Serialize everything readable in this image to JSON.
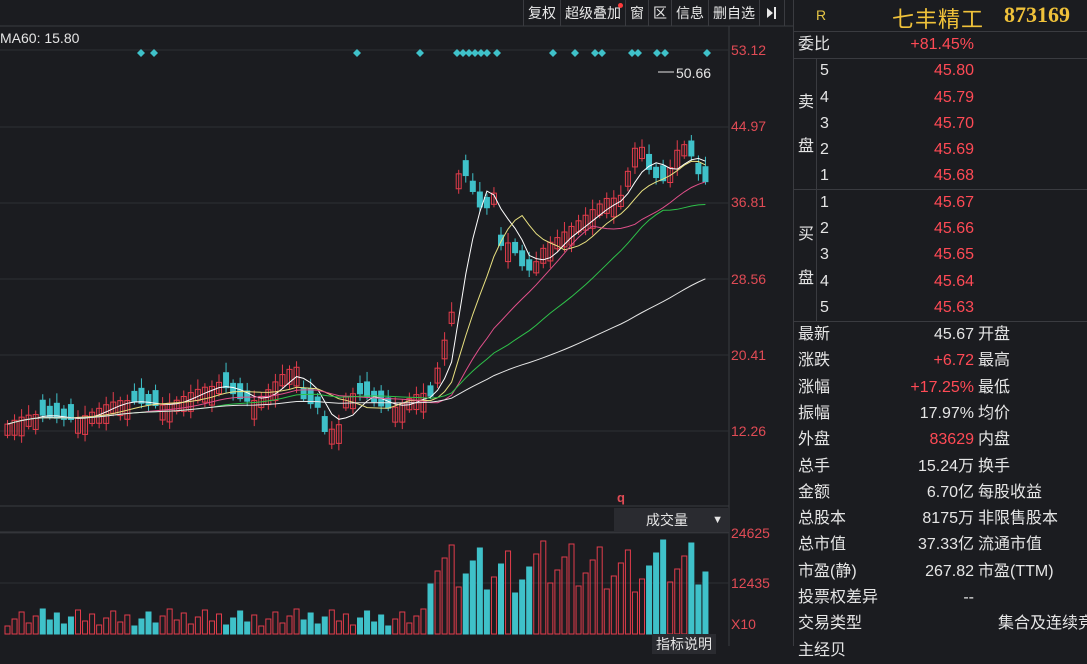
{
  "toolbar": {
    "items": [
      "复权",
      "超级叠加",
      "窗",
      "区",
      "信息",
      "删自选"
    ],
    "collapse_icon": "collapse-right-icon"
  },
  "chart": {
    "ma_label": "MA60: 15.80",
    "price_ticks": [
      "53.12",
      "44.97",
      "36.81",
      "28.56",
      "20.41",
      "12.26"
    ],
    "high_marker": "50.66",
    "volume_select": "成交量",
    "volume_ticks": [
      "24625",
      "12435",
      "X10"
    ],
    "volume_marker": "q",
    "indicator_button": "指标说明",
    "colors": {
      "up": "#e23c4b",
      "down": "#3fc1c9",
      "ma5": "#ffffff",
      "ma10": "#e8e080",
      "ma20": "#e0508a",
      "ma30": "#2ec24a",
      "ma60": "#e6e6e6",
      "diamond": "#3fc1c9"
    }
  },
  "quote": {
    "r_badge": "R",
    "name": "七丰精工",
    "code": "873169",
    "weibi_label": "委比",
    "weibi_value": "+81.45%",
    "sell_label": [
      "卖",
      "盘"
    ],
    "sell": [
      {
        "lvl": "5",
        "price": "45.80"
      },
      {
        "lvl": "4",
        "price": "45.79"
      },
      {
        "lvl": "3",
        "price": "45.70"
      },
      {
        "lvl": "2",
        "price": "45.69"
      },
      {
        "lvl": "1",
        "price": "45.68"
      }
    ],
    "buy_label": [
      "买",
      "盘"
    ],
    "buy": [
      {
        "lvl": "1",
        "price": "45.67"
      },
      {
        "lvl": "2",
        "price": "45.66"
      },
      {
        "lvl": "3",
        "price": "45.65"
      },
      {
        "lvl": "4",
        "price": "45.64"
      },
      {
        "lvl": "5",
        "price": "45.63"
      }
    ],
    "stats": [
      {
        "label": "最新",
        "value": "45.67",
        "label2": "开盘",
        "red": false
      },
      {
        "label": "涨跌",
        "value": "+6.72",
        "label2": "最高",
        "red": true
      },
      {
        "label": "涨幅",
        "value": "+17.25%",
        "label2": "最低",
        "red": true
      },
      {
        "label": "振幅",
        "value": "17.97%",
        "label2": "均价",
        "red": false
      },
      {
        "label": "外盘",
        "value": "83629",
        "label2": "内盘",
        "red": true
      },
      {
        "label": "总手",
        "value": "15.24万",
        "label2": "换手",
        "red": false
      },
      {
        "label": "金额",
        "value": "6.70亿",
        "label2": "每股收益",
        "red": false
      },
      {
        "label": "总股本",
        "value": "8175万",
        "label2": "非限售股本",
        "red": false
      },
      {
        "label": "总市值",
        "value": "37.33亿",
        "label2": "流通市值",
        "red": false
      },
      {
        "label": "市盈(静)",
        "value": "267.82",
        "label2": "市盈(TTM)",
        "red": false
      },
      {
        "label": "投票权差异",
        "value": "--",
        "label2": "",
        "red": false
      },
      {
        "label": "交易类型",
        "value": "集合及连续竞",
        "label2": "",
        "red": false
      },
      {
        "label": "主经贝",
        "value": "",
        "label2": "",
        "red": false
      }
    ]
  }
}
